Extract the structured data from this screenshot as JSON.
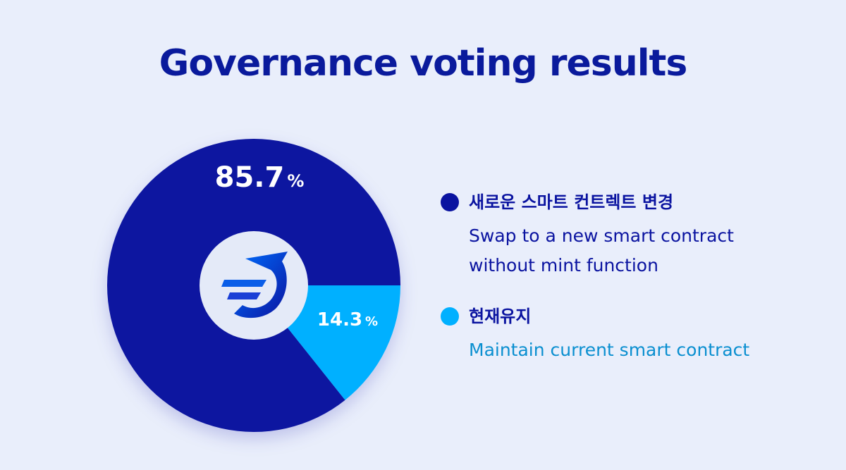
{
  "title": "Governance voting results",
  "colors": {
    "background": "#e9eefb",
    "title": "#0a1a9c",
    "series_primary": "#0a13a0",
    "series_secondary": "#00b0ff",
    "center_ring": "#e4eaf8",
    "logo": "logo-icon"
  },
  "chart_data": {
    "type": "pie",
    "title": "Governance voting results",
    "slices": [
      {
        "name": "새로운 스마트 컨트렉트 변경",
        "description": "Swap to a new smart contract without mint function",
        "value": 85.7,
        "label": "85.7",
        "unit": "%",
        "color": "#0a13a0"
      },
      {
        "name": "현재유지",
        "description": "Maintain current smart contract",
        "value": 14.3,
        "label": "14.3",
        "unit": "%",
        "color": "#00b0ff"
      }
    ],
    "legend_position": "right"
  },
  "legend": {
    "items": [
      {
        "label": "새로운 스마트 컨트렉트 변경",
        "description_lines": [
          "Swap to a new smart contract",
          "without mint function"
        ],
        "label_color": "#0a13a0",
        "description_color": "#0a13a0"
      },
      {
        "label": "현재유지",
        "description_lines": [
          "Maintain current smart contract"
        ],
        "label_color": "#0a13a0",
        "description_color": "#0a8fd0"
      }
    ]
  }
}
